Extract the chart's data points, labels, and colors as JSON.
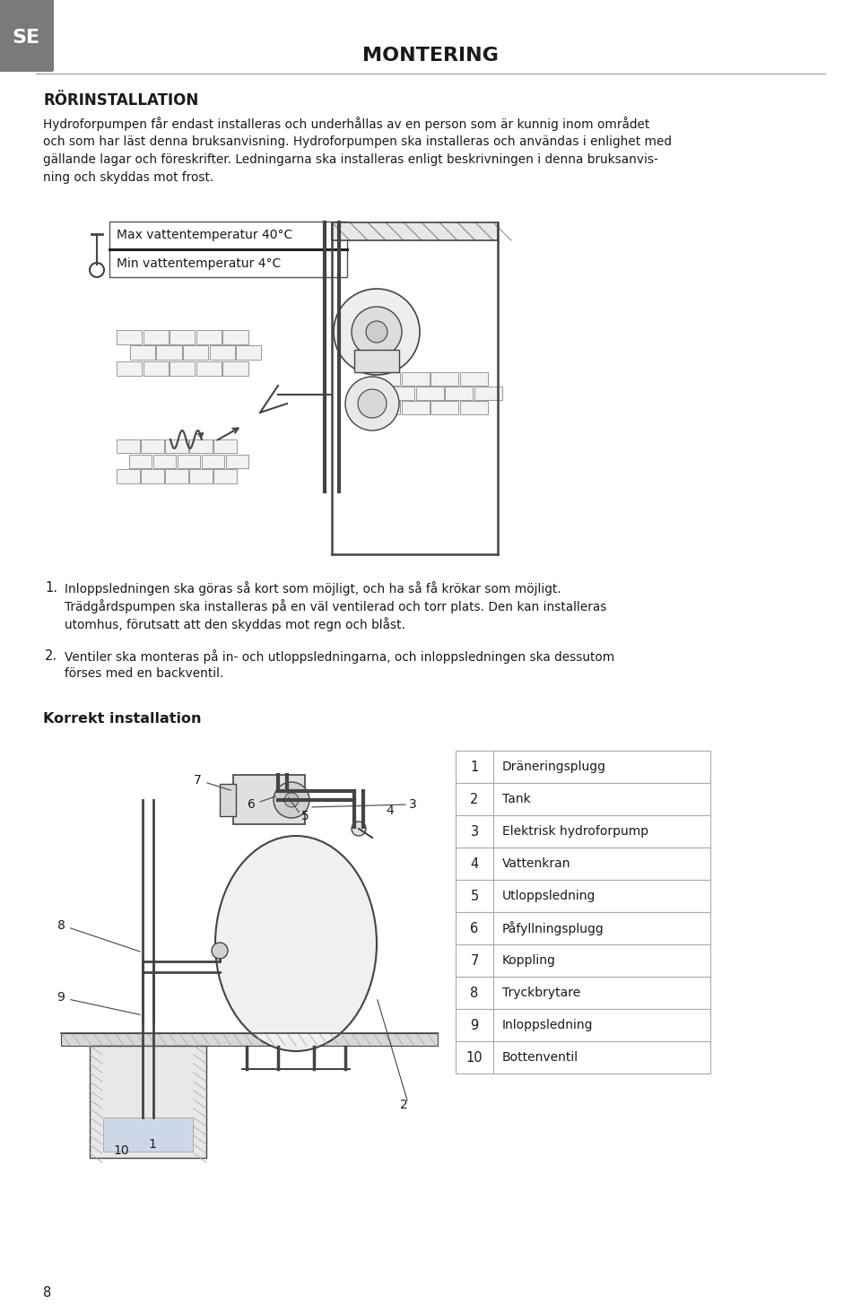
{
  "page_bg": "#ffffff",
  "tab_bg": "#7a7a7a",
  "tab_text": "SE",
  "title": "MONTERING",
  "section_heading": "RÖRINSTALLATION",
  "body_lines": [
    "Hydroforpumpen får endast installeras och underhållas av en person som är kunnig inom området",
    "och som har läst denna bruksanvisning. Hydroforpumpen ska installeras och användas i enlighet med",
    "gällande lagar och föreskrifter. Ledningarna ska installeras enligt beskrivningen i denna bruksanvis-",
    "ning och skyddas mot frost."
  ],
  "temp_label_max": "Max vattentemperatur 40°C",
  "temp_label_min": "Min vattentemperatur 4°C",
  "point1_num": "1.",
  "point1_lines": [
    "Inloppsledningen ska göras så kort som möjligt, och ha så få krökar som möjligt.",
    "Trädgårdspumpen ska installeras på en väl ventilerad och torr plats. Den kan installeras",
    "utomhus, förutsatt att den skyddas mot regn och blåst."
  ],
  "point2_num": "2.",
  "point2_lines": [
    "Ventiler ska monteras på in- och utloppsledningarna, och inloppsledningen ska dessutom",
    "förses med en backventil."
  ],
  "korrekt_heading": "Korrekt installation",
  "table_numbers": [
    "1",
    "2",
    "3",
    "4",
    "5",
    "6",
    "7",
    "8",
    "9",
    "10"
  ],
  "table_labels": [
    "Dräneringsplugg",
    "Tank",
    "Elektrisk hydroforpump",
    "Vattenkran",
    "Utloppsledning",
    "Påfyllningsplugg",
    "Koppling",
    "Tryckbrytare",
    "Inloppsledning",
    "Bottenventil"
  ],
  "page_number": "8",
  "text_color": "#1a1a1a",
  "gray_line": "#aaaaaa",
  "table_border": "#aaaaaa",
  "draw_color": "#444444"
}
